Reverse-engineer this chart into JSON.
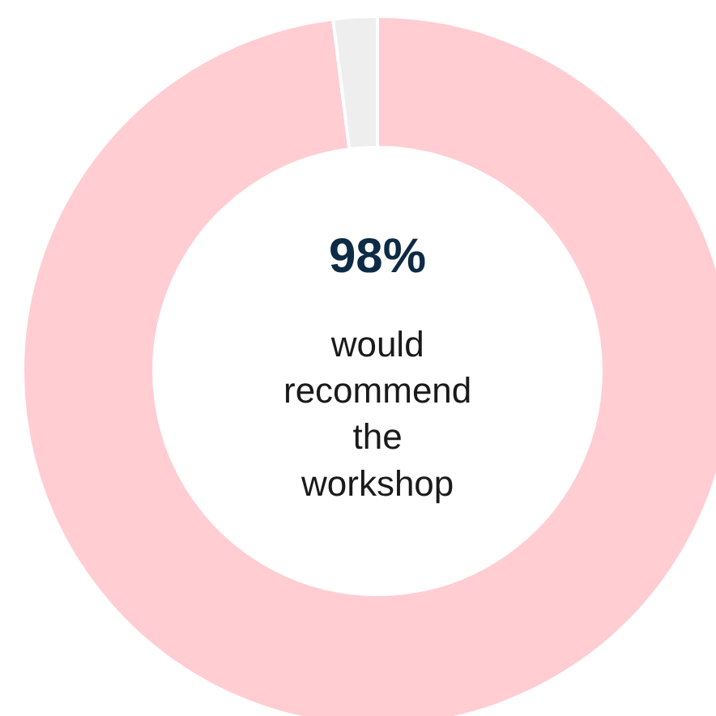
{
  "chart_data": {
    "type": "donut",
    "categories": [
      null,
      null
    ],
    "values": [
      98,
      2
    ],
    "colors": [
      "#ffcdd2",
      "#eeeeee"
    ],
    "annotations": [
      "98%",
      "would recommend the workshop"
    ],
    "legend": false
  }
}
